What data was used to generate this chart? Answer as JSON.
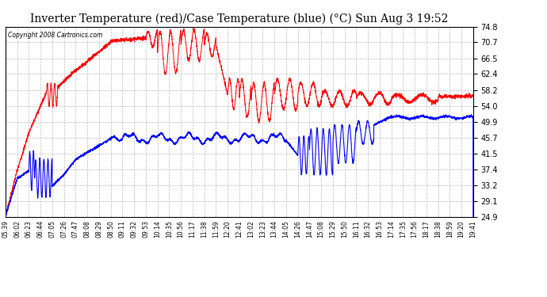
{
  "title": "Inverter Temperature (red)/Case Temperature (blue) (°C) Sun Aug 3 19:52",
  "copyright": "Copyright 2008 Cartronics.com",
  "yticks": [
    24.9,
    29.1,
    33.2,
    37.4,
    41.5,
    45.7,
    49.9,
    54.0,
    58.2,
    62.4,
    66.5,
    70.7,
    74.8
  ],
  "xtick_labels": [
    "05:39",
    "06:02",
    "06:23",
    "06:44",
    "07:05",
    "07:26",
    "07:47",
    "08:08",
    "08:29",
    "08:50",
    "09:11",
    "09:32",
    "09:53",
    "10:14",
    "10:35",
    "10:56",
    "11:17",
    "11:38",
    "11:59",
    "12:20",
    "12:41",
    "13:02",
    "13:23",
    "13:44",
    "14:05",
    "14:26",
    "14:47",
    "15:08",
    "15:29",
    "15:50",
    "16:11",
    "16:32",
    "16:53",
    "17:14",
    "17:35",
    "17:56",
    "18:17",
    "18:38",
    "18:59",
    "19:20",
    "19:41"
  ],
  "bg_color": "#ffffff",
  "grid_color": "#bbbbbb",
  "red_color": "#ff0000",
  "blue_color": "#0000ff",
  "title_fontsize": 10,
  "ymin": 24.9,
  "ymax": 74.8
}
